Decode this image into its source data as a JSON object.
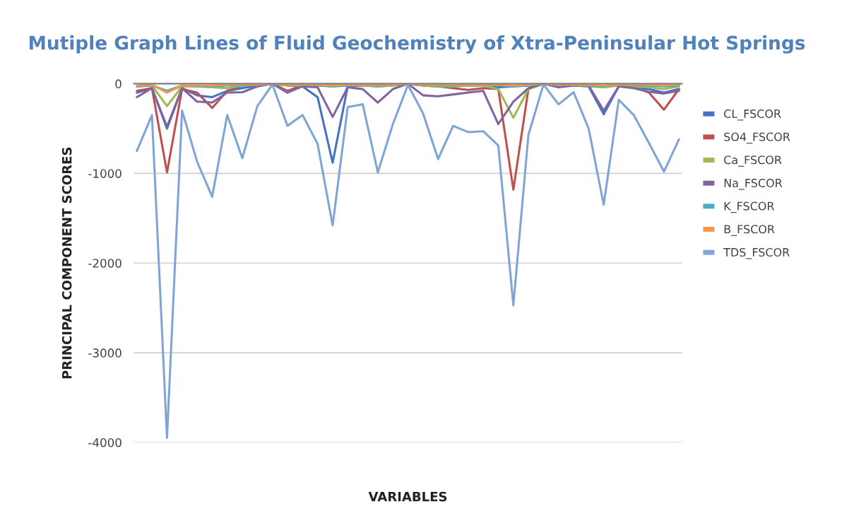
{
  "chart_data": {
    "type": "line",
    "title": "Mutiple Graph Lines of Fluid Geochemistry of Xtra-Peninsular Hot Springs",
    "xlabel": "VARIABLES",
    "ylabel": "PRINCIPAL COMPONENT SCORES",
    "categories": [
      null,
      null,
      null,
      null,
      null,
      null,
      null,
      null,
      null,
      null,
      null,
      null,
      null,
      null,
      null,
      null,
      null,
      null,
      null,
      null,
      null,
      null,
      null,
      null,
      null,
      null,
      null,
      null,
      null,
      null,
      null,
      null,
      null,
      null,
      null,
      null,
      null
    ],
    "series": [
      {
        "name": "CL_FSCOR",
        "color": "#4472c4",
        "values": [
          -100,
          -50,
          -500,
          -50,
          -130,
          -150,
          -80,
          -50,
          -20,
          0,
          -20,
          -30,
          -150,
          -880,
          -30,
          -20,
          -30,
          -20,
          0,
          -20,
          -30,
          -30,
          -20,
          -20,
          -40,
          -30,
          -20,
          0,
          -20,
          -20,
          -30,
          -340,
          -30,
          -40,
          -60,
          -100,
          -60
        ]
      },
      {
        "name": "SO4_FSCOR",
        "color": "#c0504d",
        "values": [
          -80,
          -50,
          -990,
          -60,
          -100,
          -270,
          -80,
          -20,
          -10,
          0,
          -80,
          -20,
          -10,
          -20,
          -10,
          -10,
          -20,
          -10,
          0,
          -20,
          -30,
          -50,
          -70,
          -50,
          -60,
          -1180,
          -60,
          0,
          -20,
          -10,
          -10,
          -30,
          -20,
          -30,
          -100,
          -290,
          -60
        ]
      },
      {
        "name": "Ca_FSCOR",
        "color": "#9bbb59",
        "values": [
          -30,
          -20,
          -250,
          -30,
          -30,
          -40,
          -50,
          -20,
          -10,
          0,
          -20,
          -20,
          -20,
          -30,
          -20,
          -20,
          -30,
          -20,
          0,
          -20,
          -30,
          -30,
          -20,
          -20,
          -60,
          -380,
          -60,
          0,
          -20,
          -20,
          -30,
          -40,
          -20,
          -30,
          -40,
          -60,
          -30
        ]
      },
      {
        "name": "Na_FSCOR",
        "color": "#8064a2",
        "values": [
          -150,
          -50,
          -480,
          -50,
          -200,
          -210,
          -100,
          -95,
          -30,
          0,
          -100,
          -30,
          -40,
          -370,
          -40,
          -60,
          -210,
          -60,
          0,
          -130,
          -140,
          -120,
          -100,
          -80,
          -450,
          -200,
          -50,
          0,
          -40,
          -20,
          -20,
          -300,
          -30,
          -50,
          -90,
          -110,
          -80
        ]
      },
      {
        "name": "K_FSCOR",
        "color": "#4bacc6",
        "values": [
          -30,
          -20,
          -80,
          -20,
          -30,
          -30,
          -20,
          -20,
          -10,
          0,
          -10,
          -10,
          -20,
          -30,
          -20,
          -10,
          -20,
          -10,
          0,
          -10,
          -20,
          -20,
          -10,
          -10,
          -20,
          -30,
          -20,
          0,
          -10,
          -10,
          -20,
          -30,
          -10,
          -20,
          -20,
          -30,
          -20
        ]
      },
      {
        "name": "B_FSCOR",
        "color": "#f79646",
        "values": [
          -20,
          -10,
          -100,
          -20,
          -20,
          -20,
          -10,
          -10,
          -10,
          0,
          -10,
          -10,
          -10,
          -20,
          -10,
          -10,
          -10,
          -10,
          0,
          -10,
          -10,
          -10,
          -10,
          -10,
          -10,
          -20,
          -10,
          0,
          -10,
          -10,
          -10,
          -20,
          -10,
          -10,
          -10,
          -20,
          -10
        ]
      },
      {
        "name": "TDS_FSCOR",
        "color": "#7fa5d6",
        "values": [
          -750,
          -350,
          -3950,
          -300,
          -870,
          -1260,
          -350,
          -830,
          -250,
          -10,
          -470,
          -350,
          -670,
          -1580,
          -260,
          -230,
          -990,
          -450,
          -15,
          -330,
          -840,
          -470,
          -540,
          -530,
          -690,
          -2470,
          -570,
          -10,
          -230,
          -95,
          -500,
          -1350,
          -180,
          -350,
          -660,
          -980,
          -620
        ]
      }
    ],
    "ylim": [
      -4000,
      0
    ],
    "yticks": [
      -4000,
      -3000,
      -2000,
      -1000,
      0
    ],
    "grid": "y",
    "legend": "right",
    "marker": "none",
    "line_style": "solid",
    "tick_labels": "y"
  }
}
